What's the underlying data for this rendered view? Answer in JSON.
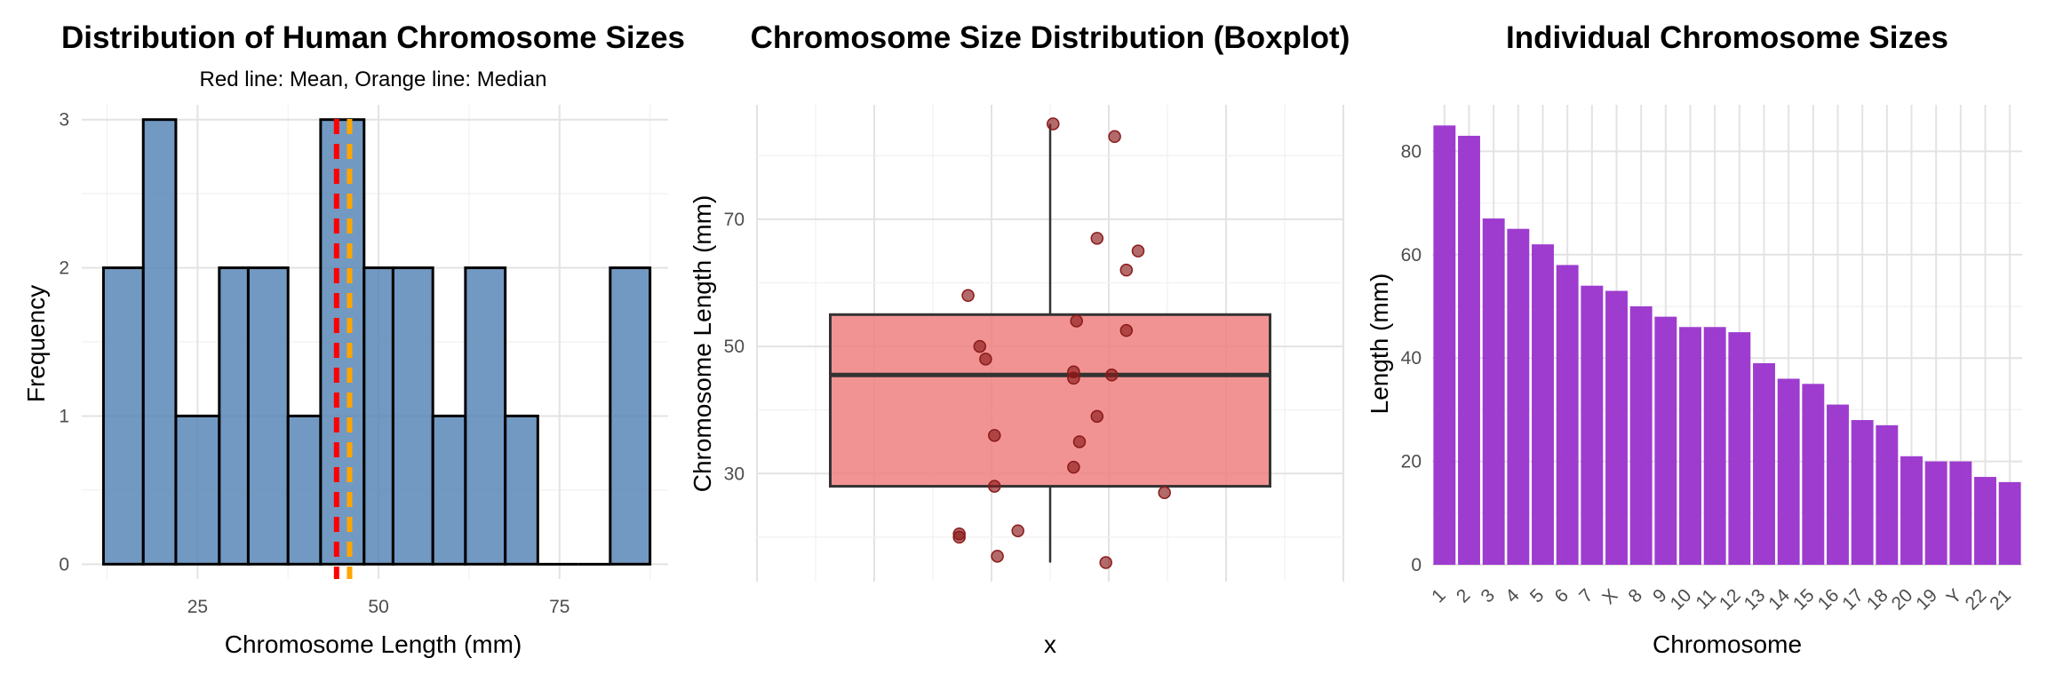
{
  "chart_data": [
    {
      "type": "histogram",
      "title": "Distribution of Human Chromosome Sizes",
      "subtitle": "Red line: Mean, Orange line: Median",
      "xlabel": "Chromosome Length (mm)",
      "ylabel": "Frequency",
      "bin_edges": [
        12,
        17.5,
        22,
        28,
        32,
        37.5,
        42,
        48,
        52,
        57.5,
        62,
        67.5,
        72,
        77.5,
        82,
        87.5
      ],
      "values": [
        2,
        3,
        1,
        2,
        2,
        1,
        3,
        2,
        2,
        1,
        2,
        1,
        0,
        0,
        2
      ],
      "mean": 44.2,
      "median": 46,
      "xlim": [
        9,
        90
      ],
      "ylim": [
        -0.1,
        3.1
      ],
      "xticks": [
        25,
        50,
        75
      ],
      "yticks": [
        0,
        1,
        2,
        3
      ],
      "colors": {
        "bar": "#4f7fb3",
        "mean": "#ff0000",
        "median": "#ffa500"
      }
    },
    {
      "type": "boxplot",
      "title": "Chromosome Size Distribution (Boxplot)",
      "xlabel": "x",
      "ylabel": "Chromosome Length (mm)",
      "stats": {
        "min": 16,
        "q1": 28,
        "median": 45.5,
        "q3": 55,
        "max": 85
      },
      "points": [
        {
          "x": 0.01,
          "y": 85
        },
        {
          "x": 0.22,
          "y": 83
        },
        {
          "x": 0.16,
          "y": 67
        },
        {
          "x": 0.3,
          "y": 65
        },
        {
          "x": 0.26,
          "y": 62
        },
        {
          "x": -0.28,
          "y": 58
        },
        {
          "x": 0.09,
          "y": 54
        },
        {
          "x": 0.26,
          "y": 52.5
        },
        {
          "x": -0.24,
          "y": 50
        },
        {
          "x": -0.22,
          "y": 48
        },
        {
          "x": 0.08,
          "y": 46
        },
        {
          "x": 0.21,
          "y": 45.5
        },
        {
          "x": 0.08,
          "y": 45
        },
        {
          "x": 0.16,
          "y": 39
        },
        {
          "x": -0.19,
          "y": 36
        },
        {
          "x": 0.1,
          "y": 35
        },
        {
          "x": 0.08,
          "y": 31
        },
        {
          "x": -0.19,
          "y": 28
        },
        {
          "x": 0.39,
          "y": 27
        },
        {
          "x": -0.11,
          "y": 21
        },
        {
          "x": -0.31,
          "y": 20.5
        },
        {
          "x": -0.31,
          "y": 20
        },
        {
          "x": -0.18,
          "y": 17
        },
        {
          "x": 0.19,
          "y": 16
        }
      ],
      "xlim": [
        -1,
        1
      ],
      "ylim": [
        13,
        88
      ],
      "yticks": [
        30,
        50,
        70
      ],
      "colors": {
        "box": "#f08080",
        "point": "#8b1a1a"
      }
    },
    {
      "type": "bar",
      "title": "Individual Chromosome Sizes",
      "xlabel": "Chromosome",
      "ylabel": "Length (mm)",
      "categories": [
        "1",
        "2",
        "3",
        "4",
        "5",
        "6",
        "7",
        "X",
        "8",
        "9",
        "10",
        "11",
        "12",
        "13",
        "14",
        "15",
        "16",
        "17",
        "18",
        "20",
        "19",
        "Y",
        "22",
        "21"
      ],
      "values": [
        85,
        83,
        67,
        65,
        62,
        58,
        54,
        53,
        50,
        48,
        46,
        46,
        45,
        39,
        36,
        35,
        31,
        28,
        27,
        21,
        20,
        20,
        17,
        16
      ],
      "ylim": [
        0,
        89
      ],
      "yticks": [
        0,
        20,
        40,
        60,
        80
      ],
      "colors": {
        "bar": "#9932cc"
      }
    }
  ]
}
